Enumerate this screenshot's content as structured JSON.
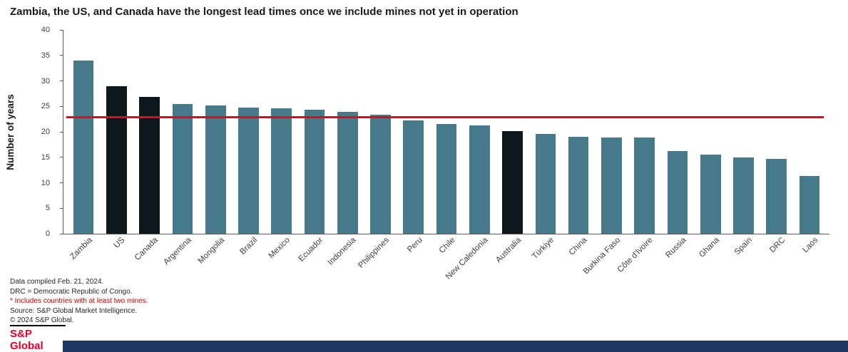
{
  "chart_data": {
    "type": "bar",
    "title": "Zambia, the US, and Canada have the longest lead times once we include mines not yet in operation",
    "xlabel": "",
    "ylabel": "Number of years",
    "ylim": [
      0,
      40
    ],
    "y_ticks": [
      0,
      5,
      10,
      15,
      20,
      25,
      30,
      35,
      40
    ],
    "grid": false,
    "legend": false,
    "categories": [
      "Zambia",
      "US",
      "Canada",
      "Argentina",
      "Mongolia",
      "Brazil",
      "Mexico",
      "Ecuador",
      "Indonesia",
      "Philippines",
      "Peru",
      "Chile",
      "New Caledonia",
      "Australia",
      "Türkiye",
      "China",
      "Burkina Faso",
      "Côte d'Ivoire",
      "Russia",
      "Ghana",
      "Spain",
      "DRC",
      "Laos"
    ],
    "values": [
      34,
      29,
      26.8,
      25.5,
      25.2,
      24.8,
      24.6,
      24.3,
      23.9,
      23.4,
      22.3,
      21.5,
      21.3,
      20.1,
      19.6,
      19,
      18.9,
      18.9,
      16.2,
      15.5,
      15,
      14.7,
      11.3
    ],
    "highlighted_categories": [
      "US",
      "Canada",
      "Australia"
    ],
    "reference_line_value": 22.7,
    "colors": {
      "bar": "#46798a",
      "highlight": "#0e171c",
      "reference_line": "#e4002b",
      "axis": "#595959"
    }
  },
  "footnotes": {
    "line1": "Data compiled Feb. 21, 2024.",
    "line2": "DRC = Democratic Republic of Congo.",
    "line3": "* Includes countries with at least two mines.",
    "line4": "Source: S&P Global Market Intelligence.",
    "line5": "© 2024 S&P Global.",
    "note_color": "#c00000"
  },
  "logo": {
    "text": "S&P Global",
    "color": "#e4002b"
  },
  "footer_bar": {
    "color": "#203764"
  }
}
